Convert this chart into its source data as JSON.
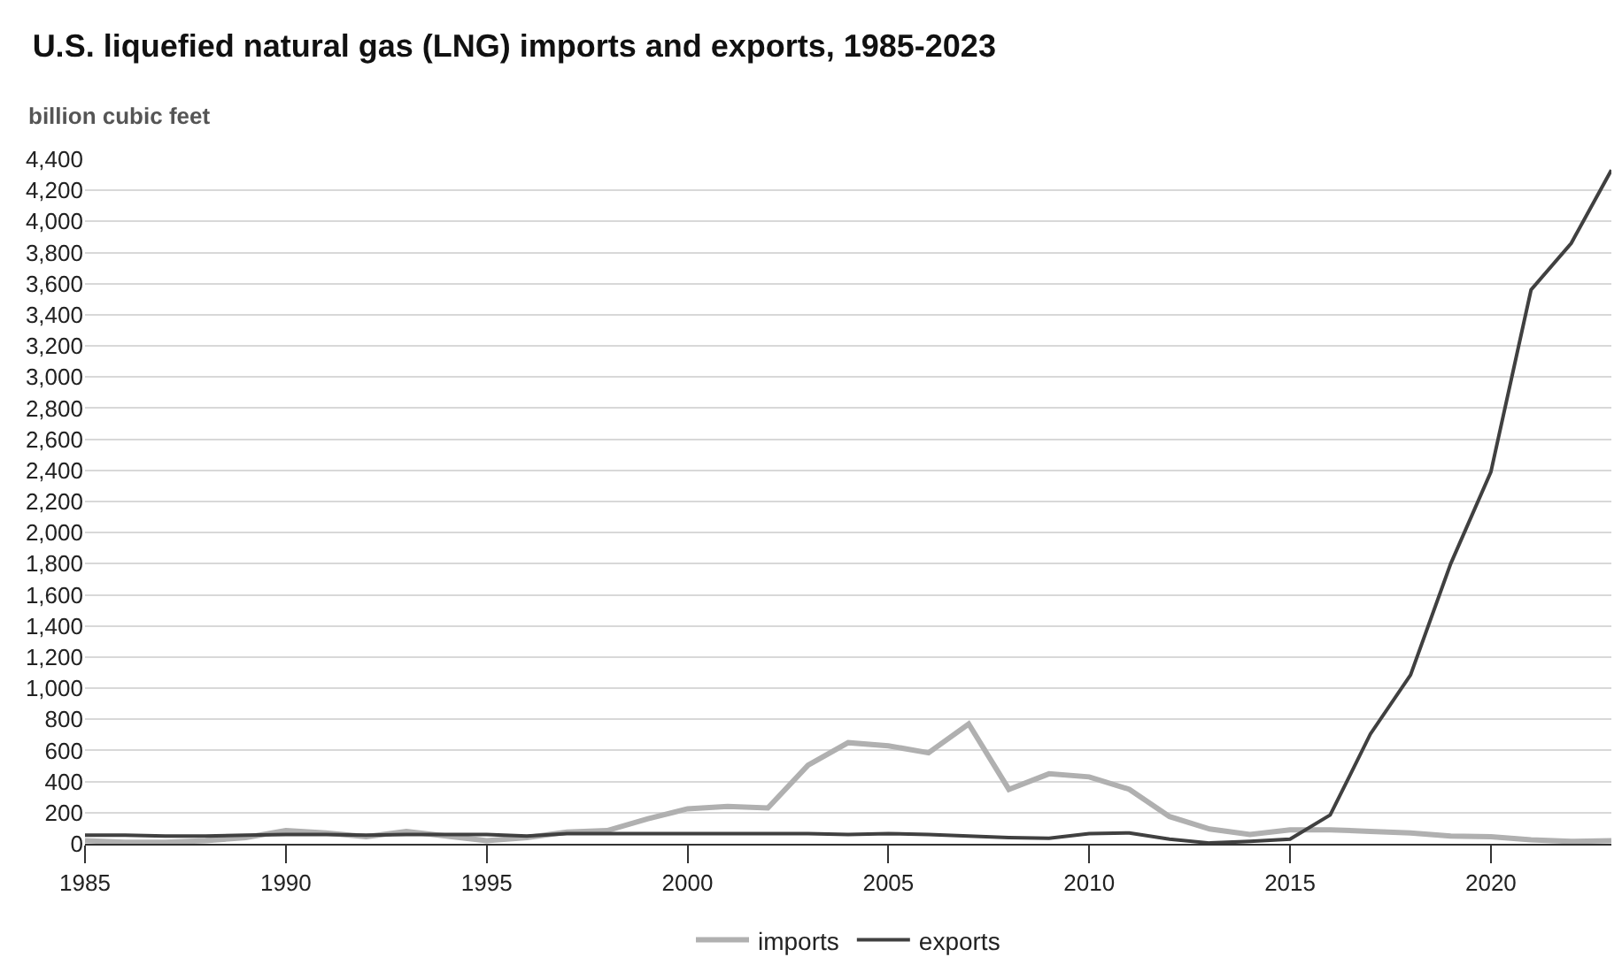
{
  "chart_data": {
    "type": "line",
    "title": "U.S. liquefied natural gas (LNG) imports and exports, 1985-2023",
    "ylabel": "billion cubic feet",
    "x": [
      1985,
      1986,
      1987,
      1988,
      1989,
      1990,
      1991,
      1992,
      1993,
      1994,
      1995,
      1996,
      1997,
      1998,
      1999,
      2000,
      2001,
      2002,
      2003,
      2004,
      2005,
      2006,
      2007,
      2008,
      2009,
      2010,
      2011,
      2012,
      2013,
      2014,
      2015,
      2016,
      2017,
      2018,
      2019,
      2020,
      2021,
      2022,
      2023
    ],
    "series": [
      {
        "name": "imports",
        "color": "#b0b0b0",
        "values": [
          20,
          10,
          10,
          20,
          40,
          85,
          70,
          45,
          80,
          50,
          20,
          40,
          75,
          85,
          160,
          225,
          240,
          230,
          505,
          650,
          630,
          585,
          770,
          350,
          450,
          430,
          350,
          175,
          95,
          60,
          90,
          90,
          80,
          70,
          50,
          45,
          25,
          15,
          20
        ]
      },
      {
        "name": "exports",
        "color": "#404040",
        "values": [
          55,
          55,
          50,
          50,
          55,
          60,
          60,
          55,
          60,
          60,
          60,
          50,
          65,
          65,
          65,
          65,
          65,
          65,
          65,
          60,
          65,
          60,
          50,
          40,
          35,
          65,
          70,
          30,
          5,
          15,
          30,
          185,
          705,
          1085,
          1800,
          2390,
          3560,
          3860,
          4330
        ]
      }
    ],
    "xlim": [
      1985,
      2023
    ],
    "xticks": [
      1985,
      1990,
      1995,
      2000,
      2005,
      2010,
      2015,
      2020
    ],
    "ylim": [
      0,
      4400
    ],
    "yticks": [
      {
        "value": 0,
        "label": "0"
      },
      {
        "value": 200,
        "label": "200"
      },
      {
        "value": 400,
        "label": "400"
      },
      {
        "value": 600,
        "label": "600"
      },
      {
        "value": 800,
        "label": "800"
      },
      {
        "value": 1000,
        "label": "1,000"
      },
      {
        "value": 1200,
        "label": "1,200"
      },
      {
        "value": 1400,
        "label": "1,400"
      },
      {
        "value": 1600,
        "label": "1,600"
      },
      {
        "value": 1800,
        "label": "1,800"
      },
      {
        "value": 2000,
        "label": "2,000"
      },
      {
        "value": 2200,
        "label": "2,200"
      },
      {
        "value": 2400,
        "label": "2,400"
      },
      {
        "value": 2600,
        "label": "2,600"
      },
      {
        "value": 2800,
        "label": "2,800"
      },
      {
        "value": 3000,
        "label": "3,000"
      },
      {
        "value": 3200,
        "label": "3,200"
      },
      {
        "value": 3400,
        "label": "3,400"
      },
      {
        "value": 3600,
        "label": "3,600"
      },
      {
        "value": 3800,
        "label": "3,800"
      },
      {
        "value": 4000,
        "label": "4,000"
      },
      {
        "value": 4200,
        "label": "4,200"
      },
      {
        "value": 4400,
        "label": "4,400"
      }
    ],
    "grid": "y",
    "legend": "bottom",
    "marker": "none",
    "line_style": "solid"
  }
}
